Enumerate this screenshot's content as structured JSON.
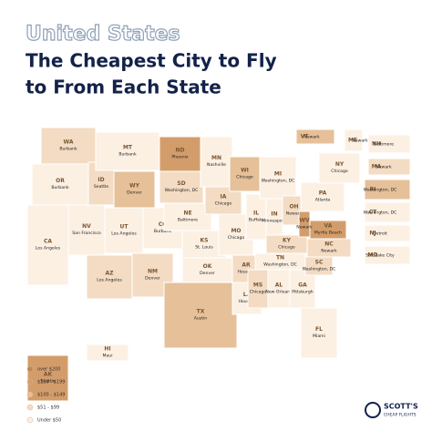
{
  "header": {
    "kicker": "United States",
    "title_line1": "The Cheapest City to Fly",
    "title_line2": "to From Each State"
  },
  "legend": [
    {
      "label": "over $200",
      "color": "#c08650"
    },
    {
      "label": "$150 - $199",
      "color": "#d39d6b"
    },
    {
      "label": "$100 - $149",
      "color": "#e6c099"
    },
    {
      "label": "$51 - $99",
      "color": "#f3dcc3"
    },
    {
      "label": "Under $50",
      "color": "#fcf0e3"
    }
  ],
  "states": [
    {
      "abbr": "WA",
      "city": "Burbank",
      "color": "#f3dcc3"
    },
    {
      "abbr": "OR",
      "city": "Burbank",
      "color": "#fcf0e3"
    },
    {
      "abbr": "CA",
      "city": "Los Angeles",
      "color": "#fcf0e3"
    },
    {
      "abbr": "NV",
      "city": "San Francisco",
      "color": "#fcf0e3"
    },
    {
      "abbr": "ID",
      "city": "Seattle",
      "color": "#f3dcc3"
    },
    {
      "abbr": "MT",
      "city": "Burbank",
      "color": "#fcf0e3"
    },
    {
      "abbr": "WY",
      "city": "Denver",
      "color": "#e6c099"
    },
    {
      "abbr": "UT",
      "city": "Los Angeles",
      "color": "#fcf0e3"
    },
    {
      "abbr": "CO",
      "city": "Burbank",
      "color": "#fcf0e3"
    },
    {
      "abbr": "AZ",
      "city": "Los Angeles",
      "color": "#f3dcc3"
    },
    {
      "abbr": "NM",
      "city": "Denver",
      "color": "#f3dcc3"
    },
    {
      "abbr": "ND",
      "city": "Phoenix",
      "color": "#d39d6b"
    },
    {
      "abbr": "SD",
      "city": "Washington, DC",
      "color": "#f3dcc3"
    },
    {
      "abbr": "NE",
      "city": "Baltimore",
      "color": "#fcf0e3"
    },
    {
      "abbr": "KS",
      "city": "St. Louis",
      "color": "#fcf0e3"
    },
    {
      "abbr": "OK",
      "city": "Denver",
      "color": "#fcf0e3"
    },
    {
      "abbr": "TX",
      "city": "Austin",
      "color": "#e6c099"
    },
    {
      "abbr": "MN",
      "city": "Nashville",
      "color": "#fcf0e3"
    },
    {
      "abbr": "IA",
      "city": "Chicago",
      "color": "#f3dcc3"
    },
    {
      "abbr": "MO",
      "city": "Chicago",
      "color": "#fcf0e3"
    },
    {
      "abbr": "AR",
      "city": "Houston",
      "color": "#f3dcc3"
    },
    {
      "abbr": "LA",
      "city": "Houston",
      "color": "#fcf0e3"
    },
    {
      "abbr": "WI",
      "city": "Chicago",
      "color": "#e6c099"
    },
    {
      "abbr": "IL",
      "city": "Buffalo",
      "color": "#fcf0e3"
    },
    {
      "abbr": "MI",
      "city": "Washington, DC",
      "color": "#fcf0e3"
    },
    {
      "abbr": "IN",
      "city": "Minneapolis",
      "color": "#fcf0e3"
    },
    {
      "abbr": "OH",
      "city": "Newark",
      "color": "#f3dcc3"
    },
    {
      "abbr": "KY",
      "city": "Chicago",
      "color": "#f3dcc3"
    },
    {
      "abbr": "TN",
      "city": "Washington, DC",
      "color": "#fcf0e3"
    },
    {
      "abbr": "MS",
      "city": "Chicago",
      "color": "#f3dcc3"
    },
    {
      "abbr": "AL",
      "city": "New Orleans",
      "color": "#fcf0e3"
    },
    {
      "abbr": "GA",
      "city": "Pittsburgh",
      "color": "#fcf0e3"
    },
    {
      "abbr": "FL",
      "city": "Miami",
      "color": "#fcf0e3"
    },
    {
      "abbr": "SC",
      "city": "Washington, DC",
      "color": "#f3dcc3"
    },
    {
      "abbr": "NC",
      "city": "Newark",
      "color": "#f3dcc3"
    },
    {
      "abbr": "VA",
      "city": "Myrtle Beach",
      "color": "#d39d6b"
    },
    {
      "abbr": "WV",
      "city": "Newark",
      "color": "#d39d6b"
    },
    {
      "abbr": "PA",
      "city": "Atlanta",
      "color": "#fcf0e3"
    },
    {
      "abbr": "NY",
      "city": "Chicago",
      "color": "#fcf0e3"
    },
    {
      "abbr": "AK",
      "city": "Seattle",
      "color": "#d39d6b"
    },
    {
      "abbr": "HI",
      "city": "Maui",
      "color": "#fcf0e3"
    },
    {
      "abbr": "VT",
      "city": "Newark",
      "color": "#e6c099"
    },
    {
      "abbr": "ME",
      "city": "Newark",
      "color": "#fcf0e3"
    },
    {
      "abbr": "NH",
      "city": "Baltimore",
      "color": "#fcf0e3"
    },
    {
      "abbr": "MA",
      "city": "Newark",
      "color": "#f3dcc3"
    },
    {
      "abbr": "RI",
      "city": "Washington, DC",
      "color": "#e6c099"
    },
    {
      "abbr": "CT",
      "city": "Washington, DC",
      "color": "#fcf0e3"
    },
    {
      "abbr": "NJ",
      "city": "Detroit",
      "color": "#fcf0e3"
    },
    {
      "abbr": "MD",
      "city": "Salt Lake City",
      "color": "#fcf0e3"
    }
  ],
  "logo": {
    "name": "SCOTT'S",
    "tagline": "CHEAP FLIGHTS"
  }
}
